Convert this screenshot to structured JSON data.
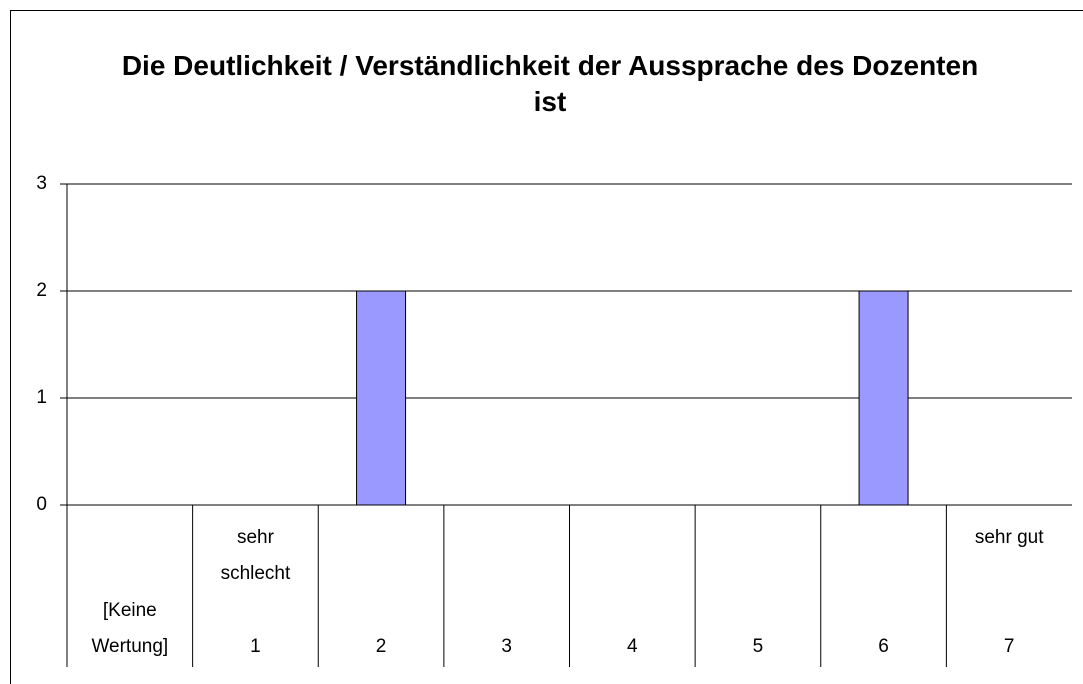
{
  "chart_data": {
    "type": "bar",
    "title": "Die Deutlichkeit / Verständlichkeit der Aussprache des Dozenten ist",
    "categories": [
      "[Keine Wertung]",
      "1",
      "2",
      "3",
      "4",
      "5",
      "6",
      "7"
    ],
    "category_notes": [
      null,
      "sehr schlecht",
      null,
      null,
      null,
      null,
      null,
      "sehr gut"
    ],
    "values": [
      0,
      0,
      2,
      0,
      0,
      0,
      2,
      0
    ],
    "color": "#9999ff",
    "ylim": [
      0,
      3
    ],
    "yticks": [
      0,
      1,
      2,
      3
    ],
    "grid": true
  }
}
